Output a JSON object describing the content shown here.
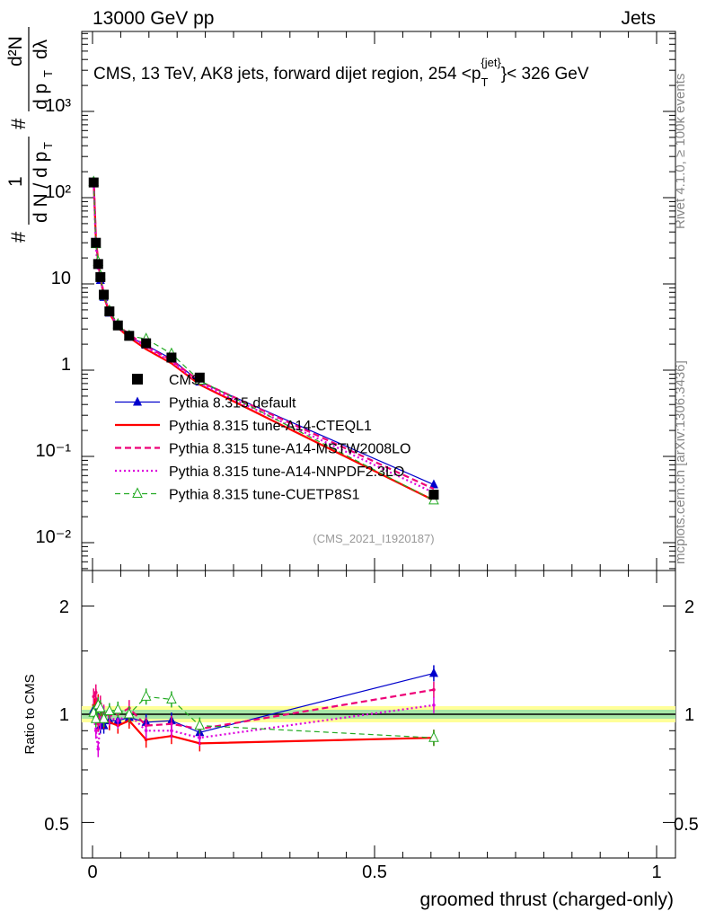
{
  "header": {
    "energy": "13000 GeV pp",
    "category": "Jets"
  },
  "plot_title": {
    "prefix": "CMS, 13 TeV, AK8 jets, forward dijet region, 254 <p",
    "sub": "T",
    "sup": "{jet}",
    "suffix": "}< 326 GeV"
  },
  "side_labels": {
    "rivet": "Rivet 4.1.0, ≥ 100k events",
    "mcplots": "mcplots.cern.ch [arXiv:1306.3436]"
  },
  "analysis_id": "(CMS_2021_I1920187)",
  "axis_labels": {
    "main_y": "1/dN/dp_T # d^2N/dp_T dλ",
    "main_y_top": "d²N",
    "main_y_left_hash": "#",
    "main_y_one": "1",
    "main_y_dndpt": "d N / d p",
    "main_y_t": "T",
    "main_y_dp": "d p",
    "main_y_lambda": "dλ",
    "ratio_y": "Ratio to CMS",
    "x": "groomed thrust (charged-only)"
  },
  "ticks": {
    "main_y": [
      "10³",
      "10²",
      "10",
      "1",
      "10⁻¹",
      "10⁻²"
    ],
    "ratio_y": [
      "2",
      "1",
      "0.5"
    ],
    "x": [
      "0",
      "0.5",
      "1"
    ]
  },
  "legend": [
    {
      "label": "CMS",
      "color": "#000000",
      "style": "square"
    },
    {
      "label": "Pythia 8.315 default",
      "color": "#0000cc",
      "style": "triangle-line"
    },
    {
      "label": "Pythia 8.315 tune-A14-CTEQL1",
      "color": "#ff0000",
      "style": "solid"
    },
    {
      "label": "Pythia 8.315 tune-A14-MSTW2008LO",
      "color": "#ee0077",
      "style": "dashed"
    },
    {
      "label": "Pythia 8.315 tune-A14-NNPDF2.3LO",
      "color": "#dd00dd",
      "style": "dotted"
    },
    {
      "label": "Pythia 8.315 tune-CUETP8S1",
      "color": "#22aa22",
      "style": "dash-open-triangle"
    }
  ],
  "chart_data": {
    "type": "line",
    "title": "CMS, 13 TeV, AK8 jets, forward dijet region, 254 < pT{jet} < 326 GeV",
    "xlabel": "groomed thrust (charged-only)",
    "ylabel": "1/N dN/dλ",
    "xlim": [
      -0.03,
      1.0
    ],
    "ylim": [
      0.004,
      3000
    ],
    "yscale": "log",
    "ratio_ylim": [
      0.38,
      2.4
    ],
    "x": [
      0.002,
      0.006,
      0.01,
      0.014,
      0.02,
      0.03,
      0.045,
      0.065,
      0.095,
      0.14,
      0.19,
      0.605
    ],
    "cms": [
      150,
      30,
      17,
      12,
      7.5,
      4.8,
      3.3,
      2.5,
      2.05,
      1.4,
      0.82,
      0.036
    ],
    "series": [
      {
        "name": "Pythia 8.315 default",
        "color": "#0000cc",
        "values": [
          155,
          31,
          16.5,
          11,
          7.0,
          4.6,
          3.2,
          2.45,
          1.95,
          1.35,
          0.73,
          0.047
        ],
        "ratio": [
          1.03,
          1.05,
          0.97,
          0.93,
          0.93,
          0.96,
          0.96,
          0.98,
          0.95,
          0.96,
          0.89,
          1.3
        ]
      },
      {
        "name": "Pythia 8.315 tune-A14-CTEQL1",
        "color": "#ff0000",
        "values": [
          160,
          33,
          18.5,
          12.2,
          7.2,
          4.6,
          3.1,
          2.4,
          1.75,
          1.2,
          0.68,
          0.031
        ],
        "ratio": [
          1.06,
          1.1,
          1.08,
          1.02,
          0.96,
          0.95,
          0.93,
          0.96,
          0.85,
          0.87,
          0.83,
          0.86
        ]
      },
      {
        "name": "Pythia 8.315 tune-A14-MSTW2008LO",
        "color": "#ee0077",
        "values": [
          168,
          35,
          16,
          12.8,
          7.6,
          4.8,
          3.3,
          2.6,
          1.9,
          1.3,
          0.74,
          0.042
        ],
        "ratio": [
          1.12,
          1.15,
          0.94,
          1.07,
          1.01,
          0.99,
          1.0,
          1.04,
          0.93,
          0.94,
          0.91,
          1.17
        ]
      },
      {
        "name": "Pythia 8.315 tune-A14-NNPDF2.3LO",
        "color": "#dd00dd",
        "values": [
          150,
          27,
          13.5,
          11.5,
          7.5,
          4.7,
          3.15,
          2.5,
          1.85,
          1.25,
          0.7,
          0.038
        ],
        "ratio": [
          1.0,
          0.9,
          0.8,
          0.96,
          1.0,
          0.98,
          0.96,
          1.0,
          0.9,
          0.9,
          0.86,
          1.06
        ]
      },
      {
        "name": "Pythia 8.315 tune-CUETP8S1",
        "color": "#22aa22",
        "values": [
          152,
          29,
          18,
          12.5,
          7.3,
          4.9,
          3.4,
          2.5,
          2.3,
          1.55,
          0.76,
          0.031
        ],
        "ratio": [
          1.01,
          0.97,
          1.06,
          1.04,
          0.97,
          1.02,
          1.03,
          1.0,
          1.12,
          1.1,
          0.93,
          0.86
        ]
      }
    ]
  }
}
